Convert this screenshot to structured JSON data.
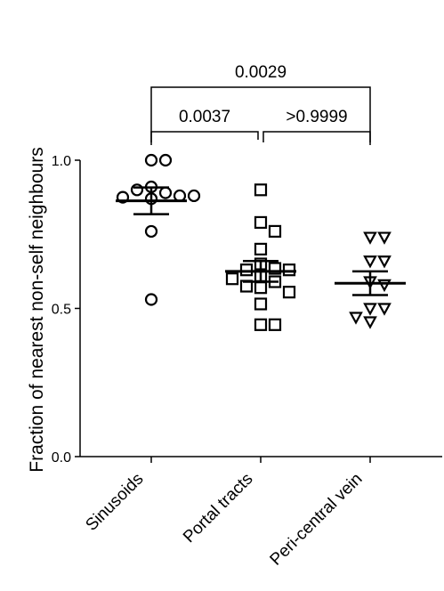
{
  "chart_data": {
    "type": "scatter",
    "title": "",
    "xlabel": "",
    "ylabel": "Fraction of nearest non-self neighbours",
    "ylim": [
      0.0,
      1.0
    ],
    "yticks": [
      {
        "value": 0.0,
        "label": "0.0"
      },
      {
        "value": 0.5,
        "label": "0.5"
      },
      {
        "value": 1.0,
        "label": "1.0"
      }
    ],
    "categories": [
      "Sinusoids",
      "Portal tracts",
      "Peri-central vein"
    ],
    "grid": false,
    "legend": "none",
    "series": [
      {
        "category": "Sinusoids",
        "marker": "circle",
        "values": [
          1.0,
          1.0,
          0.91,
          0.89,
          0.9,
          0.88,
          0.875,
          0.87,
          0.88,
          0.76,
          0.53
        ],
        "mean": 0.863,
        "sem_low": 0.818,
        "sem_high": 0.908
      },
      {
        "category": "Portal tracts",
        "marker": "square",
        "values": [
          0.9,
          0.79,
          0.76,
          0.7,
          0.65,
          0.635,
          0.63,
          0.63,
          0.61,
          0.6,
          0.59,
          0.575,
          0.57,
          0.555,
          0.515,
          0.445,
          0.445
        ],
        "mean": 0.625,
        "sem_low": 0.59,
        "sem_high": 0.66
      },
      {
        "category": "Peri-central vein",
        "marker": "triangle-down",
        "values": [
          0.74,
          0.74,
          0.66,
          0.66,
          0.59,
          0.58,
          0.5,
          0.5,
          0.47,
          0.455
        ],
        "mean": 0.585,
        "sem_low": 0.545,
        "sem_high": 0.625
      }
    ],
    "comparisons": [
      {
        "from": "Sinusoids",
        "to": "Portal tracts",
        "label": "0.0037"
      },
      {
        "from": "Portal tracts",
        "to": "Peri-central vein",
        "label": ">0.9999"
      },
      {
        "from": "Sinusoids",
        "to": "Peri-central vein",
        "label": "0.0029"
      }
    ],
    "colors": {
      "marker_stroke": "#000000",
      "marker_fill": "#ffffff",
      "line": "#000000"
    }
  }
}
